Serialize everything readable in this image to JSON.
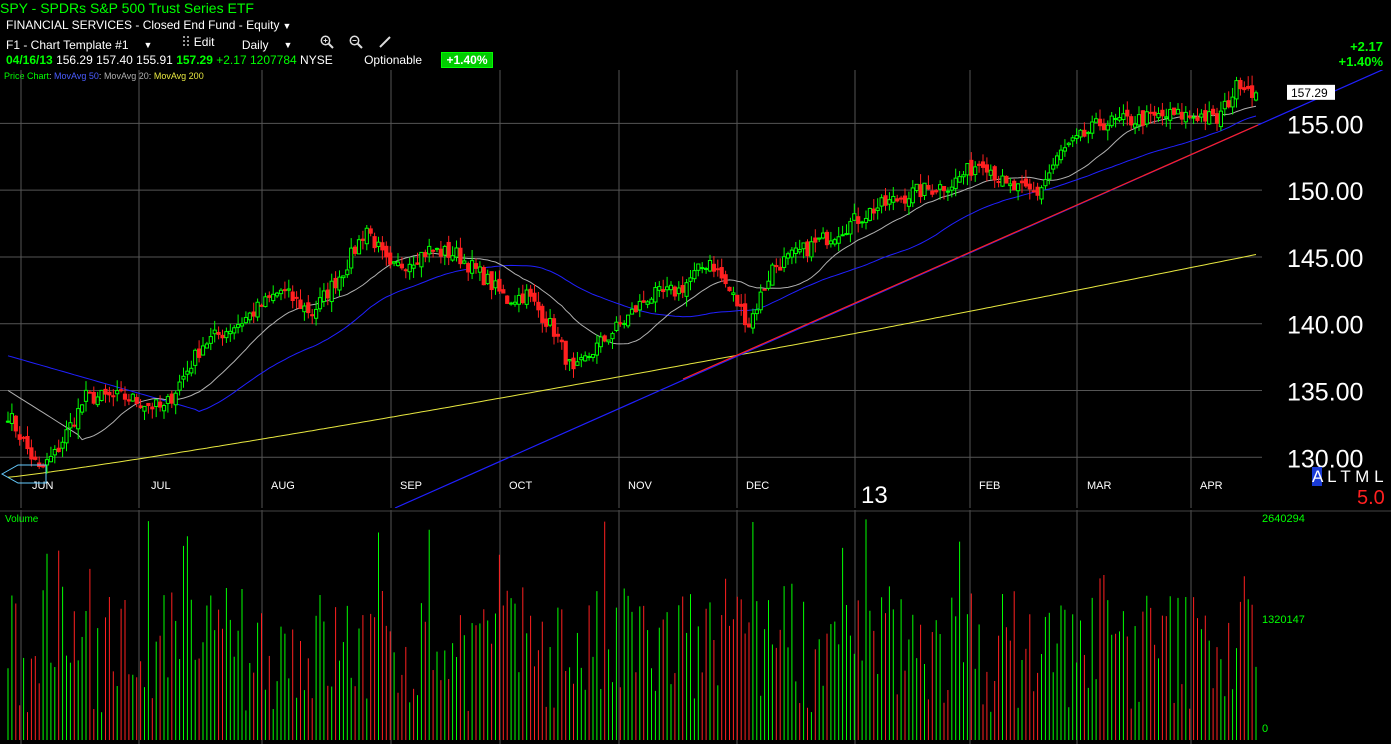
{
  "header": {
    "title_ticker": "SPY",
    "title_sep": " - ",
    "title_name": "SPDRs S&P 500 Trust Series ETF",
    "sector": "FINANCIAL SERVICES - Closed End Fund - Equity"
  },
  "toolbar": {
    "template": "F1 - Chart Template #1",
    "edit": "Edit",
    "period": "Daily"
  },
  "quote": {
    "date": "04/16/13",
    "open": "156.29",
    "high": "157.40",
    "low": "155.91",
    "close": "157.29",
    "change": "+2.17",
    "volume": "1207784",
    "exchange": "NYSE",
    "optionable": "Optionable",
    "change_pct": "+1.40%"
  },
  "top_right": {
    "change": "+2.17",
    "pct": "+1.40%"
  },
  "legend": {
    "price": "Price Chart",
    "ma50": "MovAvg 50",
    "ma20": "MovAvg 20",
    "ma200": "MovAvg 200",
    "sep": ":"
  },
  "colors": {
    "up": "#00ff00",
    "down": "#ff2020",
    "ma50": "#2020ff",
    "ma20": "#b0b0b0",
    "ma200": "#e8e840",
    "trend_red": "#ff2020",
    "trend_blue": "#2020ff",
    "grid": "#555555"
  },
  "altml": {
    "a": "A",
    "rest": "L T M L"
  },
  "rating": "5.0",
  "year_marker": "13",
  "price_tag": "157.29",
  "volume_label": "Volume",
  "chart_data": [
    {
      "type": "candlestick",
      "yticks": [
        "130.00",
        "135.00",
        "140.00",
        "145.00",
        "150.00",
        "155.00"
      ],
      "ylim": [
        126.2,
        159.0
      ],
      "xticks": [
        "JUN",
        "JUL",
        "AUG",
        "SEP",
        "OCT",
        "NOV",
        "DEC",
        "FEB",
        "MAR",
        "APR"
      ],
      "waypoints": [
        [
          0,
          133.3
        ],
        [
          8,
          129.0
        ],
        [
          12,
          130.2
        ],
        [
          20,
          134.5
        ],
        [
          30,
          134.5
        ],
        [
          40,
          133.6
        ],
        [
          50,
          138.5
        ],
        [
          60,
          140.2
        ],
        [
          70,
          142.5
        ],
        [
          78,
          140.8
        ],
        [
          86,
          144.0
        ],
        [
          92,
          147.2
        ],
        [
          98,
          144.0
        ],
        [
          108,
          145.5
        ],
        [
          115,
          145.2
        ],
        [
          122,
          143.5
        ],
        [
          128,
          141.8
        ],
        [
          133,
          142.2
        ],
        [
          140,
          139.5
        ],
        [
          145,
          136.2
        ],
        [
          150,
          138.0
        ],
        [
          158,
          140.2
        ],
        [
          164,
          142.0
        ],
        [
          172,
          142.5
        ],
        [
          180,
          144.8
        ],
        [
          186,
          142.0
        ],
        [
          190,
          140.0
        ],
        [
          196,
          144.2
        ],
        [
          204,
          145.5
        ],
        [
          212,
          146.8
        ],
        [
          222,
          148.6
        ],
        [
          232,
          149.8
        ],
        [
          242,
          150.5
        ],
        [
          250,
          152.3
        ],
        [
          256,
          150.2
        ],
        [
          264,
          149.8
        ],
        [
          270,
          152.8
        ],
        [
          280,
          155.0
        ],
        [
          290,
          155.3
        ],
        [
          298,
          155.6
        ],
        [
          306,
          155.6
        ],
        [
          310,
          155.2
        ],
        [
          316,
          158.2
        ],
        [
          320,
          157.29
        ]
      ],
      "last_close": 157.29
    },
    {
      "type": "bar",
      "title": "Volume",
      "yticks": [
        "2640294",
        "1320147",
        "0"
      ],
      "ylim": [
        0,
        2640294
      ]
    }
  ]
}
